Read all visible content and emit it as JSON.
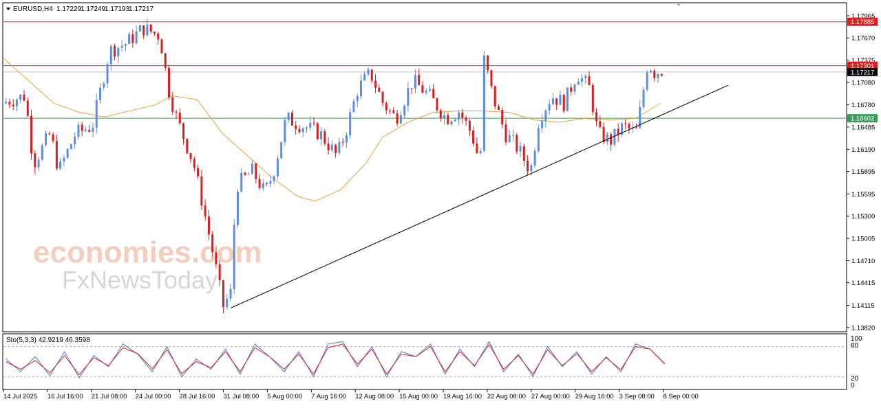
{
  "header": {
    "symbol": "EURUSD,H4",
    "open": "1.17229",
    "high": "1.17249",
    "low": "1.17193",
    "close": "1.17217"
  },
  "watermark": {
    "line1": "economies.com",
    "line2": "FxNewsToday"
  },
  "oscillator": {
    "label": "Sto(5,3,3) 42.9219 46.3598",
    "levels": [
      "100",
      "80",
      "20",
      "0"
    ]
  },
  "colors": {
    "bull": "#5b8ee0",
    "bear": "#d81e1e",
    "ma": "#f0a030",
    "resistance": "#e01e1e",
    "support": "#3c9a5a",
    "trendline": "#000000",
    "stoch_main": "#4a78c8",
    "stoch_signal": "#e01e1e"
  },
  "chart_data": [
    {
      "type": "candlestick",
      "title": "EURUSD,H4",
      "y_ticks": [
        "1.17965",
        "1.17670",
        "1.17375",
        "1.17080",
        "1.16780",
        "1.16485",
        "1.16190",
        "1.15895",
        "1.15595",
        "1.15300",
        "1.15005",
        "1.14710",
        "1.14415",
        "1.14115",
        "1.13820"
      ],
      "ylim": [
        1.138,
        1.1801
      ],
      "x_ticks": [
        "14 Jul 2025",
        "16 Jul 16:00",
        "21 Jul 08:00",
        "24 Jul 00:00",
        "28 Jul 16:00",
        "31 Jul 08:00",
        "5 Aug 00:00",
        "7 Aug 16:00",
        "12 Aug 08:00",
        "15 Aug 00:00",
        "19 Aug 16:00",
        "22 Aug 08:00",
        "27 Aug 00:00",
        "29 Aug 16:00",
        "3 Sep 08:00",
        "8 Sep 00:00"
      ],
      "levels": [
        {
          "value": 1.17885,
          "label": "1.17885",
          "kind": "resistance"
        },
        {
          "value": 1.17301,
          "label": "1.17301",
          "kind": "resistance"
        },
        {
          "value": 1.17217,
          "label": "1.17217",
          "kind": "price"
        },
        {
          "value": 1.16602,
          "label": "1.16602",
          "kind": "support"
        }
      ],
      "trendline": {
        "from": [
          1.1408,
          0.27
        ],
        "to": [
          1.1704,
          0.86
        ]
      },
      "ohlc_points": [
        [
          0.0,
          1.168
        ],
        [
          0.03,
          1.169
        ],
        [
          0.04,
          1.16
        ],
        [
          0.06,
          1.164
        ],
        [
          0.07,
          1.159
        ],
        [
          0.09,
          1.164
        ],
        [
          0.11,
          1.165
        ],
        [
          0.13,
          1.175
        ],
        [
          0.15,
          1.176
        ],
        [
          0.17,
          1.178
        ],
        [
          0.19,
          1.177
        ],
        [
          0.2,
          1.17
        ],
        [
          0.21,
          1.166
        ],
        [
          0.23,
          1.16
        ],
        [
          0.24,
          1.155
        ],
        [
          0.255,
          1.147
        ],
        [
          0.265,
          1.141
        ],
        [
          0.275,
          1.143
        ],
        [
          0.28,
          1.157
        ],
        [
          0.3,
          1.159
        ],
        [
          0.315,
          1.156
        ],
        [
          0.325,
          1.159
        ],
        [
          0.34,
          1.166
        ],
        [
          0.36,
          1.165
        ],
        [
          0.38,
          1.164
        ],
        [
          0.4,
          1.161
        ],
        [
          0.41,
          1.164
        ],
        [
          0.425,
          1.17
        ],
        [
          0.44,
          1.172
        ],
        [
          0.455,
          1.168
        ],
        [
          0.47,
          1.166
        ],
        [
          0.49,
          1.171
        ],
        [
          0.51,
          1.169
        ],
        [
          0.53,
          1.166
        ],
        [
          0.545,
          1.167
        ],
        [
          0.56,
          1.164
        ],
        [
          0.57,
          1.16
        ],
        [
          0.575,
          1.174
        ],
        [
          0.585,
          1.169
        ],
        [
          0.6,
          1.164
        ],
        [
          0.615,
          1.162
        ],
        [
          0.63,
          1.159
        ],
        [
          0.64,
          1.166
        ],
        [
          0.655,
          1.169
        ],
        [
          0.67,
          1.168
        ],
        [
          0.685,
          1.172
        ],
        [
          0.7,
          1.17
        ],
        [
          0.71,
          1.164
        ],
        [
          0.725,
          1.163
        ],
        [
          0.74,
          1.165
        ],
        [
          0.755,
          1.164
        ],
        [
          0.76,
          1.167
        ],
        [
          0.77,
          1.174
        ],
        [
          0.775,
          1.172
        ],
        [
          0.785,
          1.1724
        ]
      ],
      "moving_average_points": [
        [
          0.0,
          1.174
        ],
        [
          0.03,
          1.171
        ],
        [
          0.06,
          1.168
        ],
        [
          0.09,
          1.1668
        ],
        [
          0.12,
          1.1662
        ],
        [
          0.15,
          1.167
        ],
        [
          0.18,
          1.1678
        ],
        [
          0.2,
          1.169
        ],
        [
          0.23,
          1.1685
        ],
        [
          0.26,
          1.164
        ],
        [
          0.29,
          1.161
        ],
        [
          0.32,
          1.158
        ],
        [
          0.35,
          1.1556
        ],
        [
          0.37,
          1.155
        ],
        [
          0.4,
          1.1565
        ],
        [
          0.43,
          1.16
        ],
        [
          0.45,
          1.1635
        ],
        [
          0.48,
          1.1655
        ],
        [
          0.51,
          1.1668
        ],
        [
          0.54,
          1.167
        ],
        [
          0.57,
          1.167
        ],
        [
          0.6,
          1.1668
        ],
        [
          0.63,
          1.1658
        ],
        [
          0.66,
          1.1655
        ],
        [
          0.69,
          1.166
        ],
        [
          0.72,
          1.1658
        ],
        [
          0.75,
          1.166
        ],
        [
          0.78,
          1.168
        ]
      ]
    },
    {
      "type": "line",
      "title": "Sto(5,3,3)",
      "ylim": [
        0,
        100
      ],
      "reference_levels": [
        80,
        20
      ],
      "series": [
        {
          "name": "main",
          "values": [
            55,
            30,
            60,
            22,
            70,
            18,
            62,
            40,
            85,
            65,
            30,
            80,
            20,
            55,
            35,
            75,
            25,
            85,
            60,
            30,
            70,
            20,
            85,
            90,
            40,
            80,
            20,
            70,
            60,
            85,
            25,
            75,
            40,
            90,
            30,
            65,
            20,
            80,
            40,
            70,
            25,
            60,
            30,
            85,
            75,
            45
          ]
        },
        {
          "name": "signal",
          "values": [
            50,
            35,
            52,
            28,
            62,
            24,
            58,
            42,
            78,
            66,
            36,
            74,
            26,
            50,
            38,
            70,
            30,
            78,
            60,
            35,
            65,
            25,
            78,
            85,
            45,
            75,
            25,
            65,
            60,
            80,
            30,
            70,
            42,
            84,
            35,
            62,
            25,
            74,
            42,
            66,
            30,
            58,
            34,
            80,
            75,
            46
          ]
        }
      ]
    }
  ]
}
